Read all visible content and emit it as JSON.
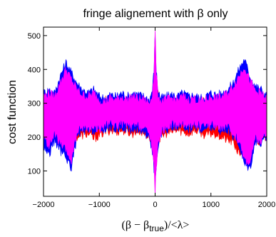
{
  "chart_data": {
    "type": "area",
    "title": "fringe alignement with β only",
    "xlabel": {
      "prefix": "(β − β",
      "subscript": "true",
      "suffix": ")/<λ>"
    },
    "ylabel": "cost function",
    "xlim": [
      -2000,
      2000
    ],
    "ylim": [
      25,
      525
    ],
    "xticks": [
      -2000,
      -1000,
      0,
      1000,
      2000
    ],
    "xtick_labels": [
      "−2000",
      "−1000",
      "0",
      "1000",
      "2000"
    ],
    "yticks": [
      100,
      200,
      300,
      400,
      500
    ],
    "ytick_labels": [
      "100",
      "200",
      "300",
      "400",
      "500"
    ],
    "grid": false,
    "legend": "none",
    "series": [
      {
        "color": "#ff0000",
        "x": [
          -2000,
          -1850,
          -1700,
          -1600,
          -1500,
          -1400,
          -1300,
          -1200,
          -1100,
          -1000,
          -900,
          -800,
          -700,
          -600,
          -500,
          -400,
          -300,
          -200,
          -100,
          -50,
          -20,
          0,
          20,
          50,
          100,
          200,
          300,
          400,
          500,
          600,
          700,
          800,
          900,
          1000,
          1100,
          1200,
          1300,
          1400,
          1500,
          1600,
          1700,
          1800,
          1900,
          2000
        ],
        "lower": [
          220,
          200,
          190,
          175,
          180,
          200,
          205,
          210,
          195,
          205,
          215,
          220,
          215,
          220,
          215,
          210,
          220,
          210,
          200,
          180,
          120,
          90,
          120,
          180,
          200,
          210,
          215,
          220,
          215,
          210,
          220,
          215,
          205,
          210,
          210,
          200,
          190,
          185,
          150,
          160,
          170,
          195,
          185,
          205
        ],
        "upper": [
          305,
          310,
          320,
          330,
          315,
          320,
          325,
          320,
          310,
          305,
          310,
          300,
          310,
          305,
          310,
          315,
          310,
          300,
          290,
          320,
          360,
          480,
          360,
          330,
          310,
          305,
          310,
          300,
          305,
          310,
          305,
          300,
          310,
          305,
          310,
          315,
          320,
          310,
          325,
          335,
          320,
          325,
          310,
          315
        ]
      },
      {
        "color": "#0000ff",
        "x": [
          -2000,
          -1900,
          -1800,
          -1700,
          -1600,
          -1500,
          -1400,
          -1300,
          -1200,
          -1100,
          -1000,
          -900,
          -800,
          -700,
          -600,
          -500,
          -400,
          -300,
          -200,
          -100,
          -50,
          -20,
          0,
          20,
          50,
          100,
          200,
          300,
          400,
          500,
          600,
          700,
          800,
          900,
          1000,
          1100,
          1200,
          1300,
          1400,
          1500,
          1600,
          1700,
          1800,
          1900,
          2000
        ],
        "lower": [
          170,
          150,
          190,
          160,
          140,
          110,
          200,
          220,
          215,
          220,
          215,
          225,
          230,
          225,
          230,
          225,
          220,
          225,
          215,
          200,
          160,
          100,
          60,
          100,
          160,
          205,
          220,
          230,
          225,
          230,
          225,
          230,
          225,
          220,
          230,
          225,
          215,
          220,
          200,
          180,
          120,
          110,
          190,
          180,
          200
        ],
        "upper": [
          330,
          340,
          330,
          380,
          420,
          390,
          360,
          340,
          330,
          340,
          320,
          315,
          325,
          320,
          330,
          320,
          330,
          325,
          320,
          310,
          340,
          400,
          510,
          400,
          340,
          315,
          320,
          325,
          320,
          330,
          320,
          325,
          315,
          320,
          330,
          325,
          330,
          340,
          360,
          400,
          430,
          380,
          350,
          340,
          320
        ]
      },
      {
        "color": "#ff00ff",
        "x": [
          -2000,
          -1900,
          -1800,
          -1700,
          -1600,
          -1500,
          -1400,
          -1300,
          -1200,
          -1100,
          -1000,
          -900,
          -800,
          -700,
          -600,
          -500,
          -400,
          -300,
          -200,
          -100,
          -50,
          -20,
          0,
          20,
          50,
          100,
          200,
          300,
          400,
          500,
          600,
          700,
          800,
          900,
          1000,
          1100,
          1200,
          1300,
          1400,
          1500,
          1600,
          1700,
          1800,
          1900,
          2000
        ],
        "lower": [
          200,
          175,
          210,
          180,
          160,
          130,
          215,
          230,
          225,
          230,
          225,
          235,
          240,
          235,
          240,
          235,
          230,
          235,
          225,
          210,
          170,
          110,
          35,
          110,
          170,
          215,
          230,
          240,
          235,
          240,
          235,
          240,
          235,
          230,
          240,
          235,
          225,
          230,
          210,
          190,
          135,
          125,
          200,
          185,
          210
        ],
        "upper": [
          320,
          330,
          320,
          360,
          400,
          370,
          340,
          325,
          320,
          330,
          310,
          305,
          315,
          310,
          320,
          310,
          320,
          315,
          310,
          300,
          330,
          390,
          520,
          390,
          330,
          305,
          310,
          315,
          310,
          320,
          310,
          315,
          305,
          310,
          320,
          315,
          320,
          330,
          350,
          380,
          410,
          365,
          335,
          330,
          310
        ]
      }
    ]
  }
}
